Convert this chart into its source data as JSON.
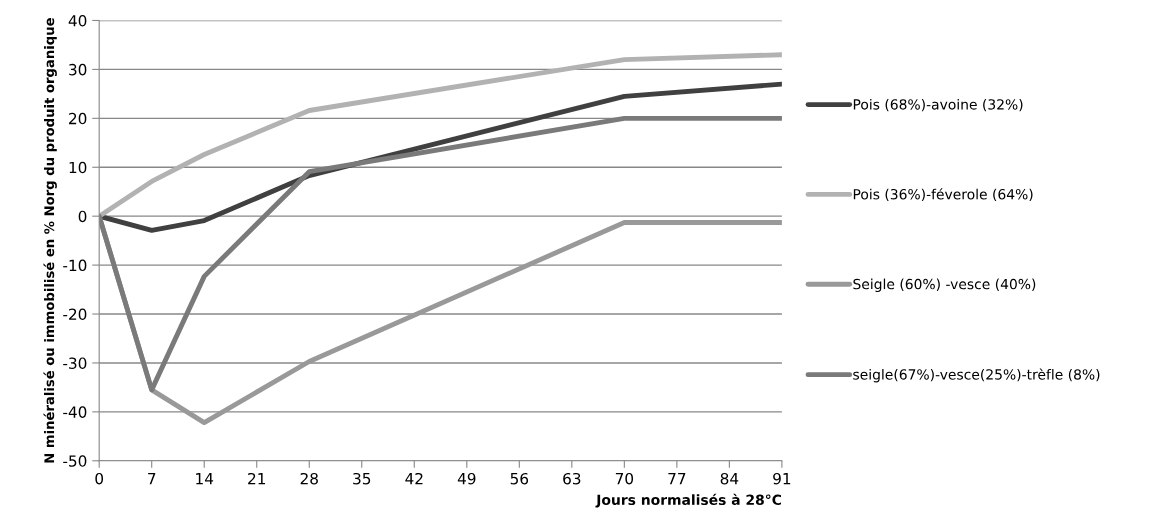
{
  "chart_data": {
    "type": "line",
    "xlabel": "Jours normalisés à 28°C",
    "ylabel": "N minéralisé ou immobilisé en % Norg du produit organique",
    "xlim": [
      0,
      91
    ],
    "xticks": [
      0,
      7,
      14,
      21,
      28,
      35,
      42,
      49,
      56,
      63,
      70,
      77,
      84,
      91
    ],
    "ylim": [
      -50,
      40
    ],
    "yticks": [
      -50,
      -40,
      -30,
      -20,
      -10,
      0,
      10,
      20,
      30,
      40
    ],
    "grid": "y",
    "legend": "right",
    "marker": "none",
    "line_style": "solid",
    "series": [
      {
        "name": "Pois (68%)-avoine (32%)",
        "color": "#404040",
        "x": [
          0,
          7,
          14,
          28,
          70,
          91
        ],
        "values": [
          0,
          -2.9,
          -0.9,
          8.3,
          24.5,
          27
        ]
      },
      {
        "name": "Pois (36%)-féverole (64%)",
        "color": "#b2b2b2",
        "x": [
          0,
          7,
          14,
          28,
          70,
          91
        ],
        "values": [
          0,
          7.1,
          12.6,
          21.6,
          32,
          33
        ]
      },
      {
        "name": "Seigle (60%) -vesce (40%)",
        "color": "#999999",
        "x": [
          0,
          7,
          14,
          28,
          70,
          91
        ],
        "values": [
          0,
          -35.5,
          -42.2,
          -29.7,
          -1.3,
          -1.3
        ]
      },
      {
        "name": "seigle(67%)-vesce(25%)-trèfle (8%)",
        "color": "#7a7a7a",
        "x": [
          0,
          7,
          14,
          28,
          70,
          91
        ],
        "values": [
          0,
          -35.5,
          -12.3,
          9.1,
          20,
          20
        ]
      }
    ]
  }
}
